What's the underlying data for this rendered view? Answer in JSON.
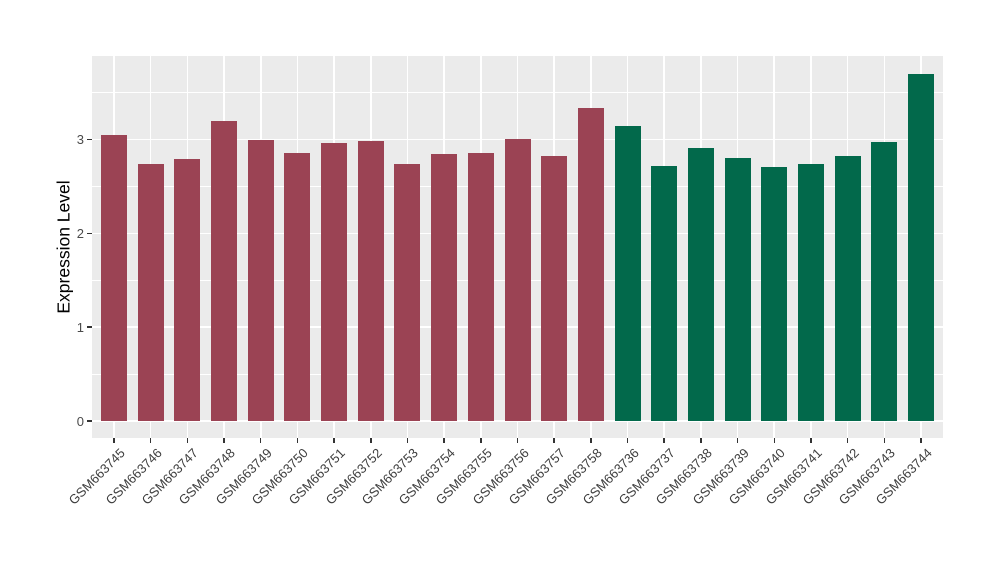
{
  "figure": {
    "background_color": "#FFFFFF",
    "panel_background_color": "#EBEBEB",
    "gridline_color": "#FFFFFF",
    "axis_text_color": "#4a4a4a"
  },
  "chart_data": {
    "type": "bar",
    "title": "",
    "xlabel": "",
    "ylabel": "Expression Level",
    "ylim": [
      -0.18,
      3.89
    ],
    "yticks": [
      0,
      1,
      2,
      3
    ],
    "yticks_minor": [
      0.5,
      1.5,
      2.5,
      3.5
    ],
    "grid": "horizontal major+minor white lines, vertical major line per category, on grey panel",
    "legend_position": "none",
    "group_colors": {
      "maroon": "#9B4354",
      "green": "#02694B"
    },
    "bars": [
      {
        "label": "GSM663745",
        "value": 3.05,
        "group": "maroon"
      },
      {
        "label": "GSM663746",
        "value": 2.74,
        "group": "maroon"
      },
      {
        "label": "GSM663747",
        "value": 2.79,
        "group": "maroon"
      },
      {
        "label": "GSM663748",
        "value": 3.2,
        "group": "maroon"
      },
      {
        "label": "GSM663749",
        "value": 2.99,
        "group": "maroon"
      },
      {
        "label": "GSM663750",
        "value": 2.86,
        "group": "maroon"
      },
      {
        "label": "GSM663751",
        "value": 2.96,
        "group": "maroon"
      },
      {
        "label": "GSM663752",
        "value": 2.98,
        "group": "maroon"
      },
      {
        "label": "GSM663753",
        "value": 2.74,
        "group": "maroon"
      },
      {
        "label": "GSM663754",
        "value": 2.85,
        "group": "maroon"
      },
      {
        "label": "GSM663755",
        "value": 2.86,
        "group": "maroon"
      },
      {
        "label": "GSM663756",
        "value": 3.01,
        "group": "maroon"
      },
      {
        "label": "GSM663757",
        "value": 2.82,
        "group": "maroon"
      },
      {
        "label": "GSM663758",
        "value": 3.34,
        "group": "maroon"
      },
      {
        "label": "GSM663736",
        "value": 3.14,
        "group": "green"
      },
      {
        "label": "GSM663737",
        "value": 2.72,
        "group": "green"
      },
      {
        "label": "GSM663738",
        "value": 2.91,
        "group": "green"
      },
      {
        "label": "GSM663739",
        "value": 2.8,
        "group": "green"
      },
      {
        "label": "GSM663740",
        "value": 2.71,
        "group": "green"
      },
      {
        "label": "GSM663741",
        "value": 2.74,
        "group": "green"
      },
      {
        "label": "GSM663742",
        "value": 2.82,
        "group": "green"
      },
      {
        "label": "GSM663743",
        "value": 2.97,
        "group": "green"
      },
      {
        "label": "GSM663744",
        "value": 3.7,
        "group": "green"
      }
    ]
  }
}
